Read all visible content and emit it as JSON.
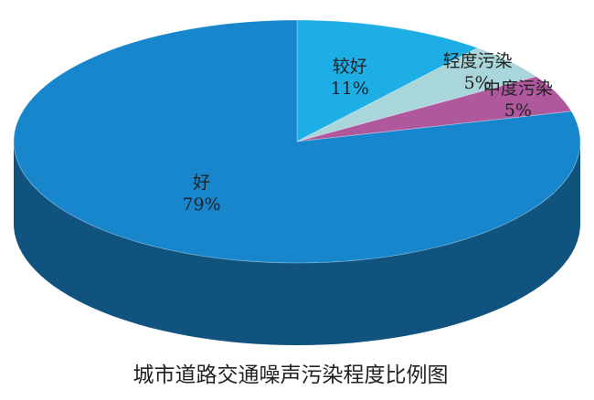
{
  "chart_data": {
    "type": "pie",
    "title": "城市道路交通噪声污染程度比例图",
    "categories": [
      "较好",
      "轻度污染",
      "中度污染",
      "好"
    ],
    "values": [
      11,
      5,
      5,
      79
    ],
    "value_labels": [
      "11%",
      "5%",
      "5%",
      "79%"
    ],
    "colors": [
      "#1eaee6",
      "#a8d6da",
      "#b0589e",
      "#1886cc"
    ]
  }
}
